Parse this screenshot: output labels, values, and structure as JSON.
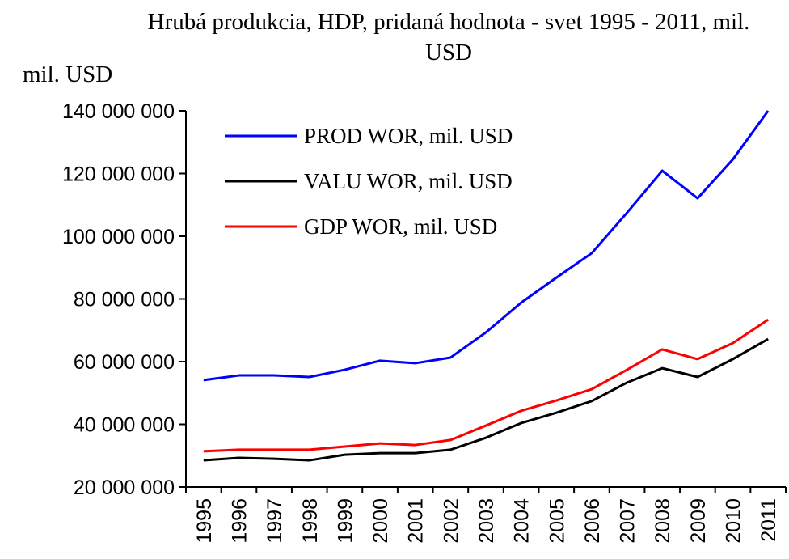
{
  "chart_data": {
    "type": "line",
    "title": "Hrubá produkcia, HDP, pridaná hodnota - svet 1995 - 2011, mil. USD",
    "y_label": "mil. USD",
    "categories": [
      "1995",
      "1996",
      "1997",
      "1998",
      "1999",
      "2000",
      "2001",
      "2002",
      "2003",
      "2004",
      "2005",
      "2006",
      "2007",
      "2008",
      "2009",
      "2010",
      "2011"
    ],
    "series": [
      {
        "name": "PROD WOR, mil. USD",
        "color": "#0000ff",
        "values": [
          54100000,
          55600000,
          55600000,
          55100000,
          57400000,
          60300000,
          59500000,
          61300000,
          69300000,
          78800000,
          86800000,
          94600000,
          107500000,
          120900000,
          112100000,
          124500000,
          140000000
        ]
      },
      {
        "name": "VALU WOR, mil. USD",
        "color": "#000000",
        "values": [
          28500000,
          29300000,
          29000000,
          28500000,
          30300000,
          30800000,
          30800000,
          31900000,
          35700000,
          40400000,
          43700000,
          47400000,
          53300000,
          57900000,
          55100000,
          60800000,
          67200000
        ]
      },
      {
        "name": "GDP WOR, mil. USD",
        "color": "#ff0000",
        "values": [
          31400000,
          31900000,
          31900000,
          31900000,
          32900000,
          33900000,
          33400000,
          35000000,
          39600000,
          44300000,
          47600000,
          51200000,
          57400000,
          63900000,
          60800000,
          65900000,
          73400000
        ]
      }
    ],
    "ylim": [
      20000000,
      140000000
    ],
    "yticks": [
      {
        "value": 20000000,
        "label": "20 000 000"
      },
      {
        "value": 40000000,
        "label": "40 000 000"
      },
      {
        "value": 60000000,
        "label": "60 000 000"
      },
      {
        "value": 80000000,
        "label": "80 000 000"
      },
      {
        "value": 100000000,
        "label": "100 000 000"
      },
      {
        "value": 120000000,
        "label": "120 000 000"
      },
      {
        "value": 140000000,
        "label": "140 000 000"
      }
    ],
    "legend": "upper-left",
    "grid": false
  }
}
